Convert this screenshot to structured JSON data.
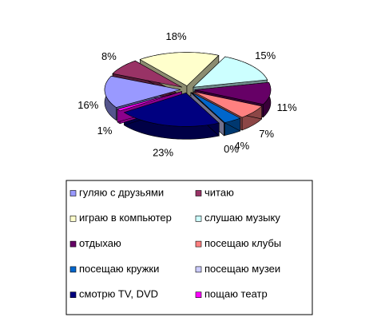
{
  "chart_data": {
    "type": "pie",
    "categories": [
      "гуляю с друзьями",
      "читаю",
      "играю в компьютер",
      "слушаю музыку",
      "отдыхаю",
      "посещаю клубы",
      "посещаю кружки",
      "посещаю музеи",
      "смотрю TV, DVD",
      "пощаю театр"
    ],
    "values": [
      16,
      8,
      18,
      15,
      11,
      7,
      4,
      0,
      23,
      1
    ],
    "value_labels": [
      "16%",
      "8%",
      "18%",
      "15%",
      "11%",
      "7%",
      "4%",
      "0%",
      "23%",
      "1%"
    ],
    "colors": [
      "#9999ff",
      "#993366",
      "#ffffcc",
      "#ccffff",
      "#660066",
      "#ff8080",
      "#0066cc",
      "#ccccff",
      "#000080",
      "#ff00ff"
    ]
  }
}
